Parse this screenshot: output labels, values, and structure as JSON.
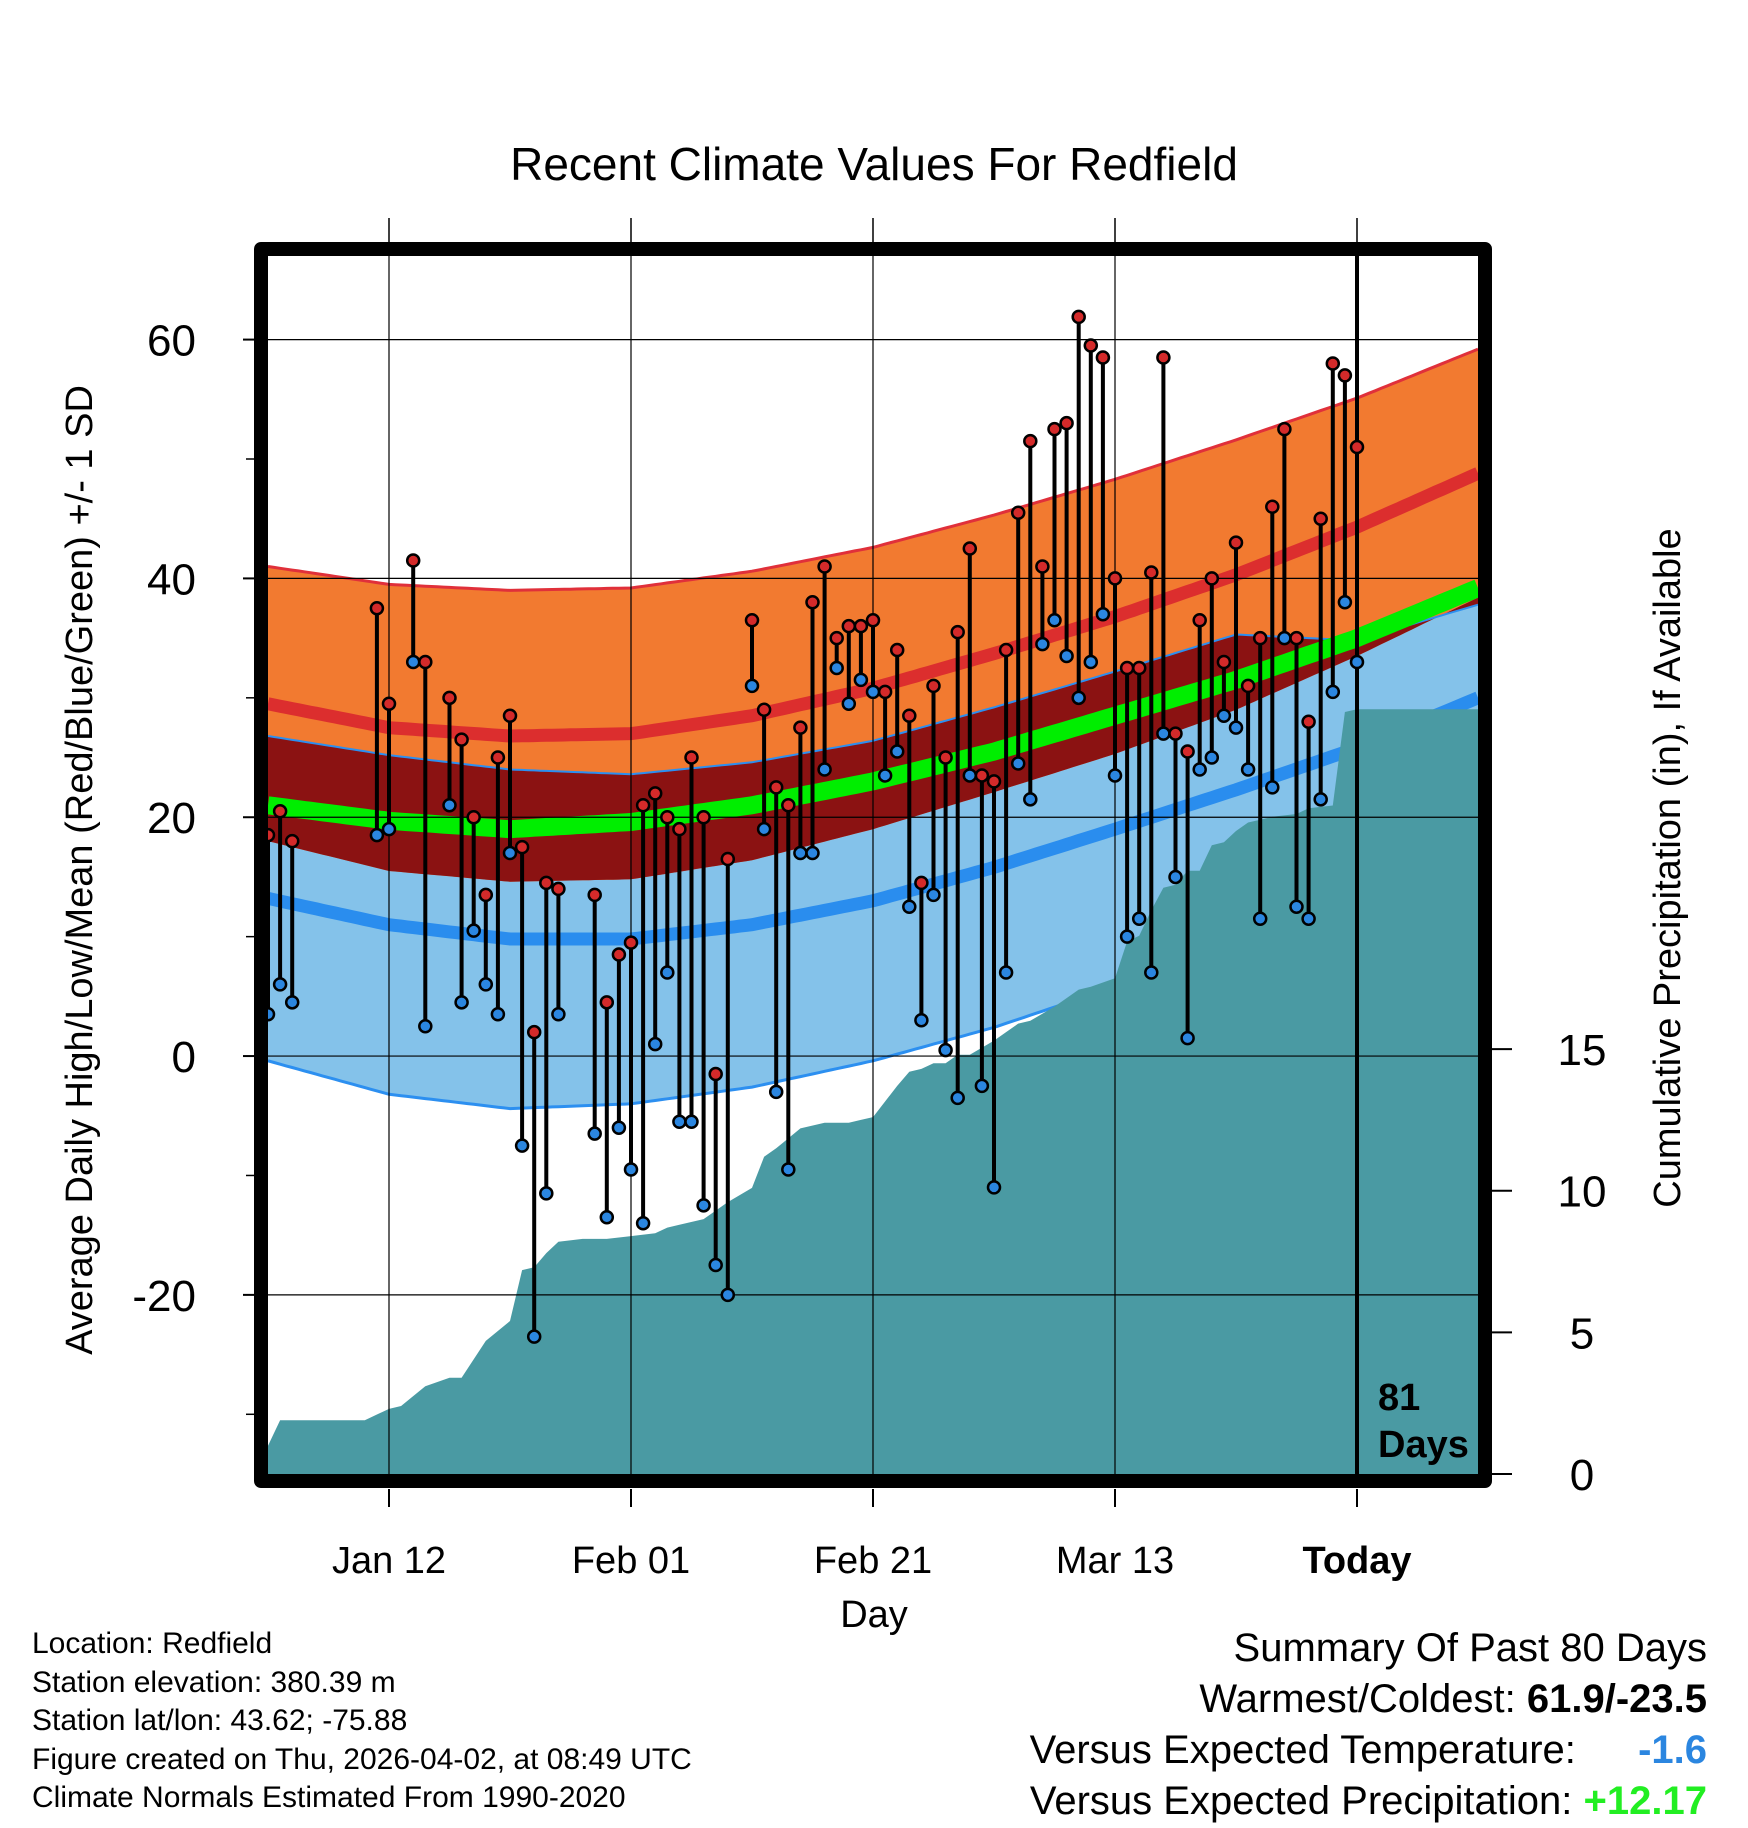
{
  "chart_data": {
    "type": "line",
    "title": "Recent Climate Values For Redfield",
    "xlabel": "Day",
    "ylabel": "Average Daily High/Low/Mean (Red/Blue/Green) +/- 1 SD",
    "y2label": "Cumulative Precipitation (in), If Available",
    "ylim": [
      -35,
      67
    ],
    "y2lim": [
      0,
      43
    ],
    "xlim": [
      0,
      100
    ],
    "grid": true,
    "today_day": 90,
    "days_label": [
      "81",
      "Days"
    ],
    "x_ticks": [
      {
        "day": 10,
        "label": "Jan 12"
      },
      {
        "day": 30,
        "label": "Feb 01"
      },
      {
        "day": 50,
        "label": "Feb 21"
      },
      {
        "day": 70,
        "label": "Mar 13"
      },
      {
        "day": 90,
        "label": "Today"
      }
    ],
    "y_ticks": [
      {
        "value": -20,
        "label": "-20"
      },
      {
        "value": 0,
        "label": "0"
      },
      {
        "value": 20,
        "label": "20"
      },
      {
        "value": 40,
        "label": "40"
      },
      {
        "value": 60,
        "label": "60"
      }
    ],
    "y2_ticks": [
      {
        "value": 0,
        "label": "0"
      },
      {
        "value": 5,
        "label": "5"
      },
      {
        "value": 10,
        "label": "10"
      },
      {
        "value": 15,
        "label": "15"
      }
    ],
    "normals": {
      "days": [
        0,
        10,
        20,
        30,
        40,
        50,
        60,
        70,
        80,
        90,
        100
      ],
      "high_mean": [
        29.5,
        27.5,
        26.8,
        27.0,
        28.5,
        30.8,
        33.7,
        36.8,
        40.3,
        44.3,
        48.8
      ],
      "high_sd": [
        11.5,
        12.0,
        12.2,
        12.2,
        12.1,
        11.8,
        11.6,
        11.5,
        11.3,
        10.8,
        10.4
      ],
      "mean": [
        21.0,
        19.7,
        19.0,
        19.6,
        21.0,
        23.0,
        25.5,
        28.5,
        31.5,
        35.0,
        39.2
      ],
      "low_mean": [
        13.2,
        11.0,
        9.8,
        9.8,
        11.0,
        13.0,
        15.8,
        19.0,
        22.3,
        25.8,
        30.0
      ],
      "low_sd": [
        13.6,
        14.2,
        14.2,
        13.8,
        13.6,
        13.4,
        13.4,
        13.2,
        13.0,
        9.0,
        7.8
      ]
    },
    "highs": [
      18.5,
      20.5,
      18.0,
      null,
      null,
      null,
      null,
      null,
      null,
      37.5,
      29.5,
      null,
      41.5,
      33.0,
      null,
      30.0,
      26.5,
      20.0,
      13.5,
      25.0,
      28.5,
      17.5,
      2.0,
      14.5,
      14.0,
      null,
      null,
      13.5,
      4.5,
      8.5,
      9.5,
      21.0,
      22.0,
      20.0,
      19.0,
      25.0,
      20.0,
      -1.5,
      16.5,
      null,
      36.5,
      29.0,
      22.5,
      21.0,
      27.5,
      38.0,
      41.0,
      35.0,
      36.0,
      36.0,
      36.5,
      30.5,
      34.0,
      28.5,
      14.5,
      31.0,
      25.0,
      35.5,
      42.5,
      23.5,
      23.0,
      34.0,
      45.5,
      51.5,
      41.0,
      52.5,
      53.0,
      61.9,
      59.5,
      58.5,
      40.0,
      32.5,
      32.5,
      40.5,
      58.5,
      27.0,
      25.5,
      36.5,
      40.0,
      33.0,
      43.0,
      31.0,
      35.0,
      46.0,
      52.5,
      35.0,
      28.0,
      45.0,
      58.0,
      57.0,
      51.0
    ],
    "lows": [
      3.5,
      6.0,
      4.5,
      null,
      null,
      null,
      null,
      null,
      null,
      18.5,
      19.0,
      null,
      33.0,
      2.5,
      null,
      21.0,
      4.5,
      10.5,
      6.0,
      3.5,
      17.0,
      -7.5,
      -23.5,
      -11.5,
      3.5,
      null,
      null,
      -6.5,
      -13.5,
      -6.0,
      -9.5,
      -14.0,
      1.0,
      7.0,
      -5.5,
      -5.5,
      -12.5,
      -17.5,
      -20.0,
      null,
      31.0,
      19.0,
      -3.0,
      -9.5,
      17.0,
      17.0,
      24.0,
      32.5,
      29.5,
      31.5,
      30.5,
      23.5,
      25.5,
      12.5,
      3.0,
      13.5,
      0.5,
      -3.5,
      23.5,
      -2.5,
      -11.0,
      7.0,
      24.5,
      21.5,
      34.5,
      36.5,
      33.5,
      30.0,
      33.0,
      37.0,
      23.5,
      10.0,
      11.5,
      7.0,
      27.0,
      15.0,
      1.5,
      24.0,
      25.0,
      28.5,
      27.5,
      24.0,
      11.5,
      22.5,
      35.0,
      12.5,
      11.5,
      21.5,
      30.5,
      38.0,
      33.0
    ],
    "precip_cumulative": [
      [
        0,
        1.0
      ],
      [
        1,
        1.9
      ],
      [
        8,
        1.9
      ],
      [
        9,
        2.1
      ],
      [
        10,
        2.3
      ],
      [
        11,
        2.4
      ],
      [
        13,
        3.1
      ],
      [
        15,
        3.4
      ],
      [
        16,
        3.4
      ],
      [
        18,
        4.7
      ],
      [
        20,
        5.4
      ],
      [
        21,
        7.2
      ],
      [
        22,
        7.3
      ],
      [
        23,
        7.8
      ],
      [
        24,
        8.2
      ],
      [
        26,
        8.3
      ],
      [
        28,
        8.3
      ],
      [
        30,
        8.4
      ],
      [
        32,
        8.5
      ],
      [
        33,
        8.7
      ],
      [
        34,
        8.8
      ],
      [
        36,
        9.0
      ],
      [
        38,
        9.6
      ],
      [
        40,
        10.1
      ],
      [
        41,
        11.2
      ],
      [
        42,
        11.5
      ],
      [
        44,
        12.2
      ],
      [
        46,
        12.4
      ],
      [
        48,
        12.4
      ],
      [
        49,
        12.5
      ],
      [
        50,
        12.6
      ],
      [
        52,
        13.7
      ],
      [
        53,
        14.2
      ],
      [
        54,
        14.3
      ],
      [
        55,
        14.5
      ],
      [
        56,
        14.5
      ],
      [
        57,
        14.8
      ],
      [
        58,
        14.8
      ],
      [
        60,
        15.3
      ],
      [
        61,
        15.6
      ],
      [
        62,
        15.9
      ],
      [
        63,
        16.0
      ],
      [
        65,
        16.5
      ],
      [
        67,
        17.1
      ],
      [
        68,
        17.2
      ],
      [
        70,
        17.5
      ],
      [
        71,
        18.8
      ],
      [
        72,
        19.0
      ],
      [
        73,
        19.9
      ],
      [
        74,
        20.7
      ],
      [
        75,
        20.8
      ],
      [
        76,
        21.3
      ],
      [
        77,
        21.3
      ],
      [
        78,
        22.2
      ],
      [
        79,
        22.3
      ],
      [
        80,
        22.7
      ],
      [
        81,
        23.0
      ],
      [
        82,
        23.1
      ],
      [
        83,
        23.2
      ],
      [
        85,
        23.3
      ],
      [
        86,
        23.5
      ],
      [
        88,
        23.6
      ],
      [
        89,
        26.9
      ],
      [
        90,
        27.0
      ],
      [
        100,
        27.0
      ]
    ]
  },
  "info": [
    "Location: Redfield",
    "Station elevation: 380.39 m",
    "Station lat/lon: 43.62; -75.88",
    "Figure created on Thu, 2026-04-02, at 08:49 UTC",
    "Climate Normals Estimated From 1990-2020"
  ],
  "summary": {
    "title": "Summary Of Past 80 Days",
    "warmest_coldest_label": "Warmest/Coldest:",
    "warmest_coldest_value": "61.9/-23.5",
    "temp_label": "Versus Expected Temperature:",
    "temp_value": "-1.6",
    "precip_label": "Versus Expected Precipitation:",
    "precip_value": "+12.17"
  },
  "colors": {
    "high_band": "#f27a30",
    "high_band_edge": "#e0303a",
    "high_line": "#dc2e2e",
    "overlap_band": "#8b1212",
    "mean_line": "#00ee00",
    "low_band": "#84c2ea",
    "low_band_edge": "#2c8ff0",
    "low_line": "#2a8dee",
    "precip": "#4a9aa3",
    "high_dot": "#d42a2a",
    "low_dot": "#2b86e0",
    "temp_summary": "#2b86e0",
    "precip_summary": "#22ee22"
  }
}
